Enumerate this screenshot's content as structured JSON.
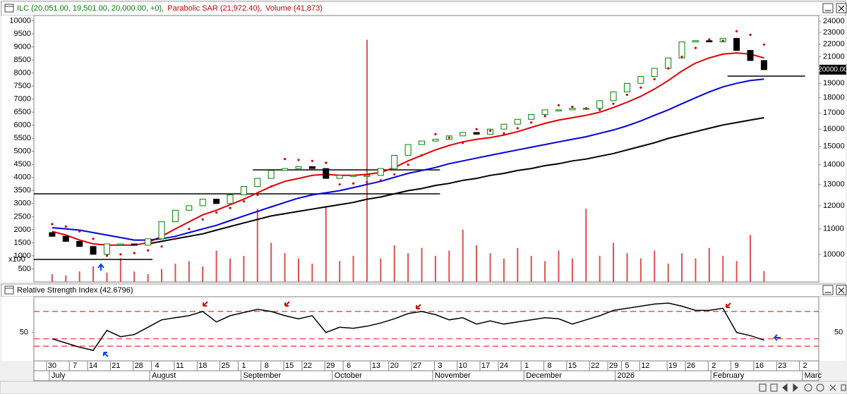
{
  "chart_data": [
    {
      "type": "candlestick",
      "legend": [
        {
          "text": "ILC (20,051.00, 19,501.00, 20,000.00, +0),",
          "color": "#008000"
        },
        {
          "text": "Parabolic SAR (21,972.40),",
          "color": "#d00000"
        },
        {
          "text": "Volume (41,873)",
          "color": "#d00000"
        }
      ],
      "x": [
        0,
        3,
        6,
        9,
        12,
        15,
        18,
        21,
        24,
        27,
        30,
        33,
        36,
        39,
        42,
        45,
        48,
        51,
        54,
        57,
        60,
        63,
        66,
        69,
        72,
        75,
        78,
        81,
        84,
        87,
        90,
        93,
        96,
        99,
        102,
        105,
        108,
        111,
        114,
        117,
        120,
        123,
        126,
        129,
        132,
        135,
        138,
        141,
        144,
        147,
        150,
        153,
        156
      ],
      "xlim": [
        -4,
        168
      ],
      "open": [
        10850,
        10700,
        10500,
        10300,
        10000,
        10400,
        10400,
        10350,
        10600,
        11300,
        11800,
        12000,
        12300,
        12100,
        12500,
        12900,
        13300,
        13700,
        13800,
        13900,
        13800,
        13300,
        13450,
        13450,
        13450,
        13800,
        14500,
        15100,
        15300,
        15400,
        15600,
        15800,
        15700,
        16000,
        16300,
        16600,
        16900,
        17200,
        17200,
        17300,
        17300,
        17800,
        18400,
        19000,
        19500,
        20100,
        20900,
        22200,
        22300,
        22200,
        22500,
        21500,
        20700
      ],
      "close": [
        10700,
        10500,
        10300,
        10000,
        10400,
        10400,
        10350,
        10600,
        11300,
        11800,
        12000,
        12300,
        12100,
        12500,
        12900,
        13300,
        13700,
        13800,
        13900,
        13800,
        13300,
        13450,
        13450,
        13450,
        13800,
        14500,
        15100,
        15300,
        15400,
        15600,
        15800,
        15700,
        16000,
        16300,
        16600,
        16900,
        17200,
        17200,
        17300,
        17300,
        17800,
        18400,
        19000,
        19500,
        20100,
        20900,
        22200,
        22300,
        22200,
        22500,
        21500,
        20700,
        20000
      ],
      "up_color": "#008000",
      "down_color": "#000000",
      "y2log": true,
      "y2lim": [
        9016,
        24510
      ],
      "y2ticks": [
        10000,
        11000,
        12000,
        13000,
        14000,
        15000,
        16000,
        17000,
        18000,
        19000,
        20000,
        21000,
        22000,
        23000,
        24000
      ],
      "ylim": [
        0,
        10200
      ],
      "yticks": [
        500,
        1000,
        1500,
        2000,
        2500,
        3000,
        3500,
        4000,
        4500,
        5000,
        5500,
        6000,
        6500,
        7000,
        7500,
        8000,
        8500,
        9000,
        9500,
        10000
      ],
      "y_unit": "x100",
      "series": [
        {
          "type": "line",
          "axis": "y2",
          "color": "#e00000",
          "values": [
            10900,
            10750,
            10550,
            10400,
            10350,
            10350,
            10350,
            10450,
            10700,
            11000,
            11300,
            11600,
            11800,
            12050,
            12300,
            12600,
            12900,
            13150,
            13300,
            13450,
            13500,
            13450,
            13450,
            13500,
            13600,
            13850,
            14200,
            14500,
            14800,
            15050,
            15250,
            15400,
            15500,
            15650,
            15850,
            16100,
            16350,
            16550,
            16700,
            16850,
            17050,
            17350,
            17700,
            18100,
            18600,
            19200,
            19900,
            20500,
            20900,
            21200,
            21300,
            21200,
            20900
          ]
        },
        {
          "type": "line",
          "axis": "y2",
          "color": "#0000e0",
          "values": [
            11050,
            11000,
            10950,
            10850,
            10750,
            10650,
            10550,
            10550,
            10600,
            10700,
            10850,
            11000,
            11150,
            11350,
            11550,
            11750,
            11950,
            12150,
            12350,
            12500,
            12600,
            12700,
            12850,
            13000,
            13150,
            13350,
            13550,
            13700,
            13850,
            14050,
            14200,
            14350,
            14500,
            14650,
            14800,
            14950,
            15100,
            15250,
            15400,
            15550,
            15750,
            15950,
            16200,
            16500,
            16850,
            17200,
            17600,
            18000,
            18400,
            18750,
            19000,
            19200,
            19300
          ]
        },
        {
          "type": "line",
          "axis": "y2",
          "color": "#000000",
          "values": [
            null,
            null,
            null,
            null,
            null,
            null,
            null,
            10400,
            10500,
            10600,
            10700,
            10800,
            10950,
            11100,
            11250,
            11400,
            11550,
            11650,
            11750,
            11850,
            11950,
            12050,
            12150,
            12300,
            12400,
            12550,
            12700,
            12800,
            12950,
            13050,
            13200,
            13300,
            13450,
            13550,
            13700,
            13800,
            13950,
            14050,
            14200,
            14300,
            14450,
            14600,
            14800,
            15000,
            15200,
            15450,
            15650,
            15850,
            16050,
            16250,
            16400,
            16550,
            16700
          ]
        },
        {
          "type": "dots",
          "axis": "y2",
          "color": "#d00000",
          "values": [
            11200,
            11100,
            10900,
            10600,
            9950,
            10000,
            10050,
            10150,
            10300,
            10600,
            11000,
            11400,
            11700,
            11900,
            12200,
            12500,
            12900,
            14300,
            14250,
            14200,
            14100,
            13000,
            13050,
            13100,
            13200,
            13500,
            14000,
            14500,
            15700,
            15500,
            15200,
            16000,
            15900,
            15750,
            16050,
            16400,
            16800,
            17500,
            17400,
            17300,
            17200,
            17600,
            18200,
            18700,
            19300,
            20100,
            21000,
            21700,
            22400,
            22300,
            23100,
            22800,
            21972.4
          ]
        },
        {
          "type": "bar",
          "axis": "y",
          "color": "#e05050",
          "values": [
            300,
            250,
            400,
            600,
            350,
            900,
            400,
            300,
            500,
            700,
            800,
            600,
            1200,
            900,
            1000,
            2800,
            1500,
            1100,
            900,
            700,
            2900,
            800,
            1000,
            9270,
            900,
            1400,
            1100,
            1300,
            1000,
            1200,
            2000,
            1400,
            1100,
            900,
            1300,
            1000,
            800,
            1200,
            900,
            2800,
            1000,
            1500,
            1100,
            900,
            1200,
            700,
            1100,
            900,
            1300,
            1000,
            800,
            1800,
            418.73
          ]
        }
      ],
      "hlines": [
        {
          "value": 9810,
          "x": [
            -4,
            22
          ]
        },
        {
          "value": 12550,
          "x": [
            -4,
            85
          ]
        },
        {
          "value": 13730,
          "x": [
            44,
            85
          ]
        },
        {
          "value": 19520,
          "x": [
            148,
            165
          ]
        }
      ],
      "hline_color": "#000000",
      "last_label": {
        "value": 20000,
        "label": "20000.00"
      }
    },
    {
      "type": "line",
      "title": "Relative Strength Index (42.6796)",
      "ylim": [
        23,
        84
      ],
      "yticks": [
        50
      ],
      "series": [
        {
          "color": "#000000",
          "values": [
            44,
            40,
            36,
            33,
            52,
            46,
            48,
            55,
            62,
            64,
            66,
            70,
            60,
            66,
            69,
            72,
            70,
            66,
            63,
            66,
            50,
            55,
            54,
            56,
            59,
            63,
            68,
            70,
            67,
            62,
            64,
            58,
            61,
            58,
            60,
            62,
            64,
            63,
            58,
            62,
            66,
            71,
            73,
            75,
            77,
            78,
            75,
            71,
            71,
            73,
            50,
            47,
            42.6796
          ]
        }
      ],
      "reference_lines": [
        70,
        44,
        37
      ],
      "reference_color": "#e03030",
      "xticks": [
        {
          "value": 0,
          "label": "30"
        },
        {
          "value": 5,
          "label": "7"
        },
        {
          "value": 9,
          "label": "14"
        },
        {
          "value": 14,
          "label": "21"
        },
        {
          "value": 19,
          "label": "28"
        },
        {
          "value": 23,
          "label": "4"
        },
        {
          "value": 28,
          "label": "11"
        },
        {
          "value": 33,
          "label": "18"
        },
        {
          "value": 38,
          "label": "25"
        },
        {
          "value": 42,
          "label": "1"
        },
        {
          "value": 47,
          "label": "8"
        },
        {
          "value": 52,
          "label": "15"
        },
        {
          "value": 56,
          "label": "22"
        },
        {
          "value": 61,
          "label": "29"
        },
        {
          "value": 65,
          "label": "6"
        },
        {
          "value": 71,
          "label": "13"
        },
        {
          "value": 75,
          "label": "20"
        },
        {
          "value": 80,
          "label": "27"
        },
        {
          "value": 85,
          "label": "3"
        },
        {
          "value": 90,
          "label": "10"
        },
        {
          "value": 95,
          "label": "17"
        },
        {
          "value": 99,
          "label": "24"
        },
        {
          "value": 104,
          "label": "1"
        },
        {
          "value": 109,
          "label": "8"
        },
        {
          "value": 114,
          "label": "15"
        },
        {
          "value": 119,
          "label": "22"
        },
        {
          "value": 123,
          "label": "29"
        },
        {
          "value": 126,
          "label": "5"
        },
        {
          "value": 130,
          "label": "12"
        },
        {
          "value": 136,
          "label": "19"
        },
        {
          "value": 140,
          "label": "26"
        },
        {
          "value": 145,
          "label": "2"
        },
        {
          "value": 150,
          "label": "9"
        },
        {
          "value": 155,
          "label": "16"
        },
        {
          "value": 160,
          "label": "23"
        },
        {
          "value": 165,
          "label": "2"
        }
      ],
      "month_ticks": [
        {
          "value": 0,
          "label": "July"
        },
        {
          "value": 22,
          "label": "August"
        },
        {
          "value": 42,
          "label": "September"
        },
        {
          "value": 62,
          "label": "October"
        },
        {
          "value": 84,
          "label": "November"
        },
        {
          "value": 104,
          "label": "December"
        },
        {
          "value": 124,
          "label": "2026"
        },
        {
          "value": 145,
          "label": "February"
        },
        {
          "value": 165,
          "label": "Marc"
        }
      ]
    }
  ]
}
